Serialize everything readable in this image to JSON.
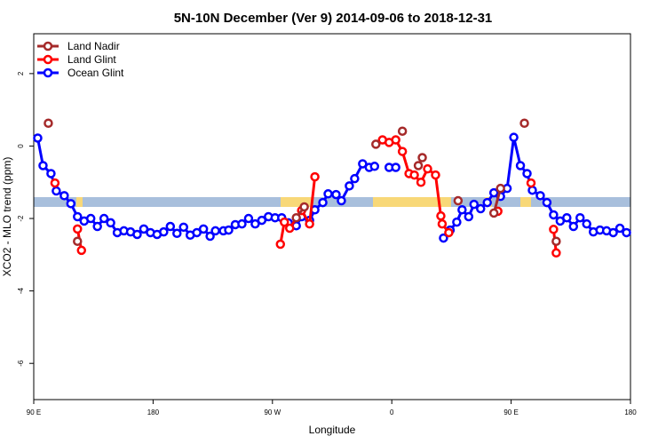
{
  "chart_data": {
    "type": "line",
    "title": "5N-10N December (Ver 9)   2014-09-06 to 2018-12-31",
    "xlabel": "Longitude",
    "ylabel": "XCO2 - MLO trend (ppm)",
    "xlim": [
      90,
      540
    ],
    "xticks": [
      {
        "value": 90,
        "label": "90 E"
      },
      {
        "value": 180,
        "label": "180"
      },
      {
        "value": 270,
        "label": "90 W"
      },
      {
        "value": 360,
        "label": "0"
      },
      {
        "value": 450,
        "label": "90 E"
      },
      {
        "value": 540,
        "label": "180"
      }
    ],
    "ylim": [
      -7,
      3.1
    ],
    "yticks": [
      -6,
      -4,
      -2,
      0,
      2
    ],
    "legend": "top-left",
    "series": [
      {
        "name": "Land Nadir",
        "color": "#a52a2a",
        "x": [
          101,
          null,
          123,
          null,
          288,
          294,
          null,
          348,
          null,
          368,
          null,
          380,
          383,
          null,
          410,
          null,
          437,
          442,
          null,
          460,
          null,
          484
        ],
        "values": [
          0.63,
          null,
          -2.63,
          null,
          -1.98,
          -1.68,
          null,
          0.05,
          null,
          0.41,
          null,
          -0.54,
          -0.32,
          null,
          -1.51,
          null,
          -1.85,
          -1.17,
          null,
          0.63,
          null,
          -2.63
        ]
      },
      {
        "name": "Land Glint",
        "color": "#ff0000",
        "x": [
          106,
          null,
          123,
          126,
          null,
          276,
          279,
          283,
          292,
          298,
          302,
          null,
          353,
          358,
          363,
          368,
          373,
          377,
          382,
          387,
          393,
          397,
          398,
          403,
          null,
          440,
          null,
          465,
          null,
          482,
          484
        ],
        "values": [
          -1.02,
          null,
          -2.29,
          -2.88,
          null,
          -2.71,
          -2.1,
          -2.27,
          -1.78,
          -2.15,
          -0.85,
          null,
          0.17,
          0.1,
          0.17,
          -0.15,
          -0.76,
          -0.8,
          -1.0,
          -0.63,
          -0.8,
          -1.93,
          -2.15,
          -2.39,
          null,
          -1.8,
          null,
          -1.02,
          null,
          -2.3,
          -2.95
        ]
      },
      {
        "name": "Ocean Glint",
        "color": "#0000ff",
        "x": [
          93,
          97,
          103,
          107,
          113,
          118,
          123,
          128,
          133,
          138,
          143,
          148,
          153,
          158,
          163,
          168,
          173,
          178,
          183,
          188,
          193,
          198,
          203,
          208,
          213,
          218,
          223,
          227,
          233,
          237,
          242,
          247,
          252,
          257,
          262,
          267,
          272,
          277,
          282,
          288,
          292,
          298,
          302,
          308,
          312,
          318,
          322,
          328,
          332,
          338,
          343,
          347,
          null,
          358,
          363,
          null,
          399,
          404,
          409,
          413,
          418,
          422,
          427,
          432,
          437,
          442,
          447,
          452,
          457,
          462,
          466,
          472,
          477,
          482,
          487,
          492,
          497,
          502,
          507,
          512,
          517,
          522,
          527,
          532,
          537
        ],
        "values": [
          0.22,
          -0.54,
          -0.76,
          -1.24,
          -1.37,
          -1.59,
          -1.95,
          -2.07,
          -2.0,
          -2.22,
          -2.0,
          -2.12,
          -2.39,
          -2.34,
          -2.37,
          -2.44,
          -2.29,
          -2.39,
          -2.44,
          -2.37,
          -2.22,
          -2.41,
          -2.24,
          -2.46,
          -2.39,
          -2.29,
          -2.49,
          -2.34,
          -2.34,
          -2.32,
          -2.17,
          -2.15,
          -2.0,
          -2.15,
          -2.05,
          -1.95,
          -1.98,
          -1.98,
          -2.12,
          -2.2,
          -1.95,
          -2.05,
          -1.76,
          -1.56,
          -1.32,
          -1.34,
          -1.51,
          -1.1,
          -0.9,
          -0.49,
          -0.59,
          -0.56,
          null,
          -0.59,
          -0.59,
          null,
          -2.54,
          -2.32,
          -2.1,
          -1.76,
          -1.95,
          -1.61,
          -1.73,
          -1.56,
          -1.29,
          -1.39,
          -1.17,
          0.24,
          -0.54,
          -0.76,
          -1.22,
          -1.37,
          -1.56,
          -1.9,
          -2.07,
          -1.98,
          -2.22,
          -1.98,
          -2.15,
          -2.37,
          -2.32,
          -2.34,
          -2.39,
          -2.27,
          -2.39
        ]
      }
    ]
  }
}
